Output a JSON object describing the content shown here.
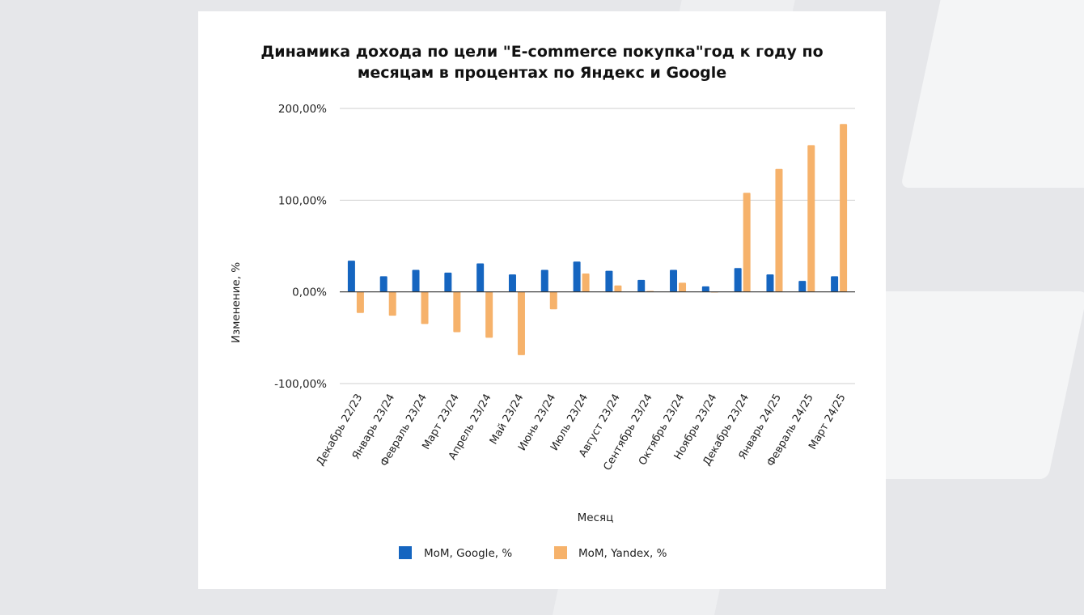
{
  "chart_data": {
    "type": "bar",
    "title_lines": [
      "Динамика дохода по цели \"E-commerce покупка\"год к году по",
      "месяцам в процентах по Яндекс и Google"
    ],
    "xlabel": "Месяц",
    "ylabel": "Изменение, %",
    "ylim": [
      -100,
      200
    ],
    "yticks": [
      -100,
      0,
      100,
      200
    ],
    "ytick_labels": [
      "-100,00%",
      "0,00%",
      "100,00%",
      "200,00%"
    ],
    "grid": true,
    "legend_position": "bottom",
    "categories": [
      "Декабрь 22/23",
      "Январь 23/24",
      "Февраль 23/24",
      "Март 23/24",
      "Апрель 23/24",
      "Май 23/24",
      "Июнь 23/24",
      "Июль 23/24",
      "Август 23/24",
      "Сентябрь 23/24",
      "Октябрь 23/24",
      "Ноябрь 23/24",
      "Декабрь 23/24",
      "Январь 24/25",
      "Февраль 24/25",
      "Март 24/25"
    ],
    "series": [
      {
        "name": "MoM, Google, %",
        "color": "#1565c0",
        "values": [
          34,
          17,
          24,
          21,
          31,
          19,
          24,
          33,
          23,
          13,
          24,
          6,
          26,
          19,
          12,
          17
        ]
      },
      {
        "name": "MoM, Yandex, %",
        "color": "#f6b26b",
        "values": [
          -23,
          -26,
          -35,
          -44,
          -50,
          -69,
          -19,
          20,
          7,
          1,
          10,
          0,
          108,
          134,
          160,
          183
        ]
      }
    ]
  }
}
